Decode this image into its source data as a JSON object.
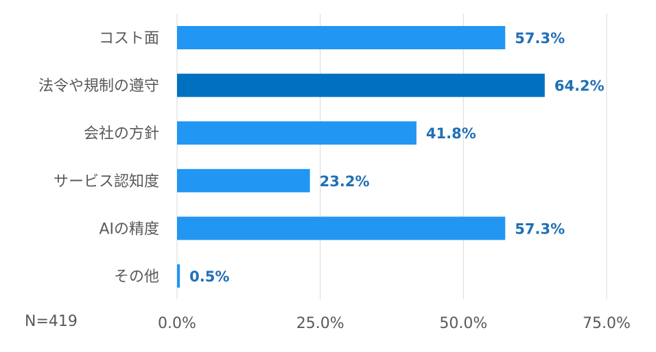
{
  "chart_data": {
    "type": "bar",
    "orientation": "horizontal",
    "categories": [
      "コスト面",
      "法令や規制の遵守",
      "会社の方針",
      "サービス認知度",
      "AIの精度",
      "その他"
    ],
    "values": [
      57.3,
      64.2,
      41.8,
      23.2,
      57.3,
      0.5
    ],
    "value_labels": [
      "57.3%",
      "64.2%",
      "41.8%",
      "23.2%",
      "57.3%",
      "0.5%"
    ],
    "highlight_index": 1,
    "xlim": [
      0,
      75
    ],
    "xticks": [
      0,
      25,
      50,
      75
    ],
    "xtick_labels": [
      "0.0%",
      "25.0%",
      "50.0%",
      "75.0%"
    ],
    "grid": true,
    "legend": "none",
    "colors": {
      "bar": "#2196F3",
      "highlight": "#0070C0",
      "label": "#1F6FB5",
      "grid": "#D9D9D9",
      "text": "#595959"
    }
  },
  "sample_note": "N=419"
}
